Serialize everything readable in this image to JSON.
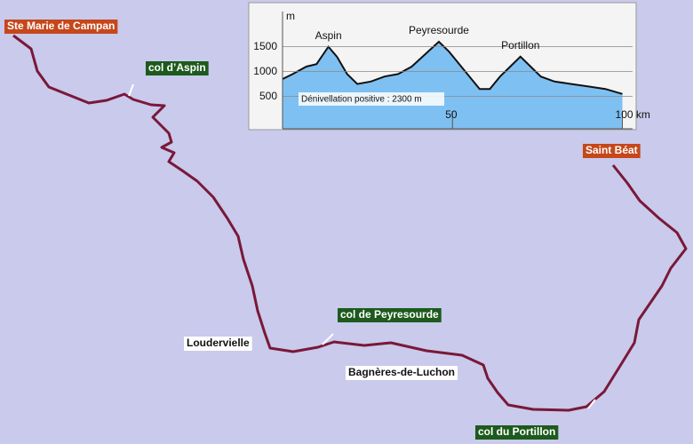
{
  "chart_data": {
    "type": "area",
    "y_label": "m",
    "x": [
      0,
      3,
      7,
      10,
      13.5,
      16,
      19,
      22,
      26,
      30,
      34,
      38,
      42,
      46,
      49,
      52,
      55,
      58,
      61,
      64,
      67,
      70,
      73,
      76,
      80,
      85,
      90,
      95,
      100
    ],
    "values": [
      850,
      950,
      1100,
      1150,
      1500,
      1300,
      950,
      750,
      800,
      900,
      950,
      1100,
      1350,
      1600,
      1400,
      1150,
      900,
      650,
      650,
      900,
      1100,
      1300,
      1100,
      900,
      800,
      750,
      700,
      650,
      550
    ],
    "color": "#7fc0f2",
    "line_color": "#111111",
    "xlim": [
      0,
      103
    ],
    "ylim": [
      -150,
      2350
    ],
    "xticks": [
      50,
      {
        "value": 100,
        "label": "100 km"
      }
    ],
    "yticks": [
      500,
      1000,
      1500
    ],
    "grid": true,
    "annotations": [
      {
        "text": "Aspin",
        "x": 13.5,
        "y": 1500
      },
      {
        "text": "Peyresourde",
        "x": 46,
        "y": 1600
      },
      {
        "text": "Portillon",
        "x": 70,
        "y": 1300
      }
    ],
    "note": "Dénivellation positive : 2300 m"
  },
  "map": {
    "labels": [
      {
        "text": "Ste Marie de Campan",
        "kind": "town"
      },
      {
        "text": "col d’Aspin",
        "kind": "col"
      },
      {
        "text": "Saint Béat",
        "kind": "town"
      },
      {
        "text": "col de Peyresourde",
        "kind": "col"
      },
      {
        "text": "Loudervielle",
        "kind": "place"
      },
      {
        "text": "Bagnères-de-Luchon",
        "kind": "place"
      },
      {
        "text": "col du Portillon",
        "kind": "col"
      }
    ]
  }
}
